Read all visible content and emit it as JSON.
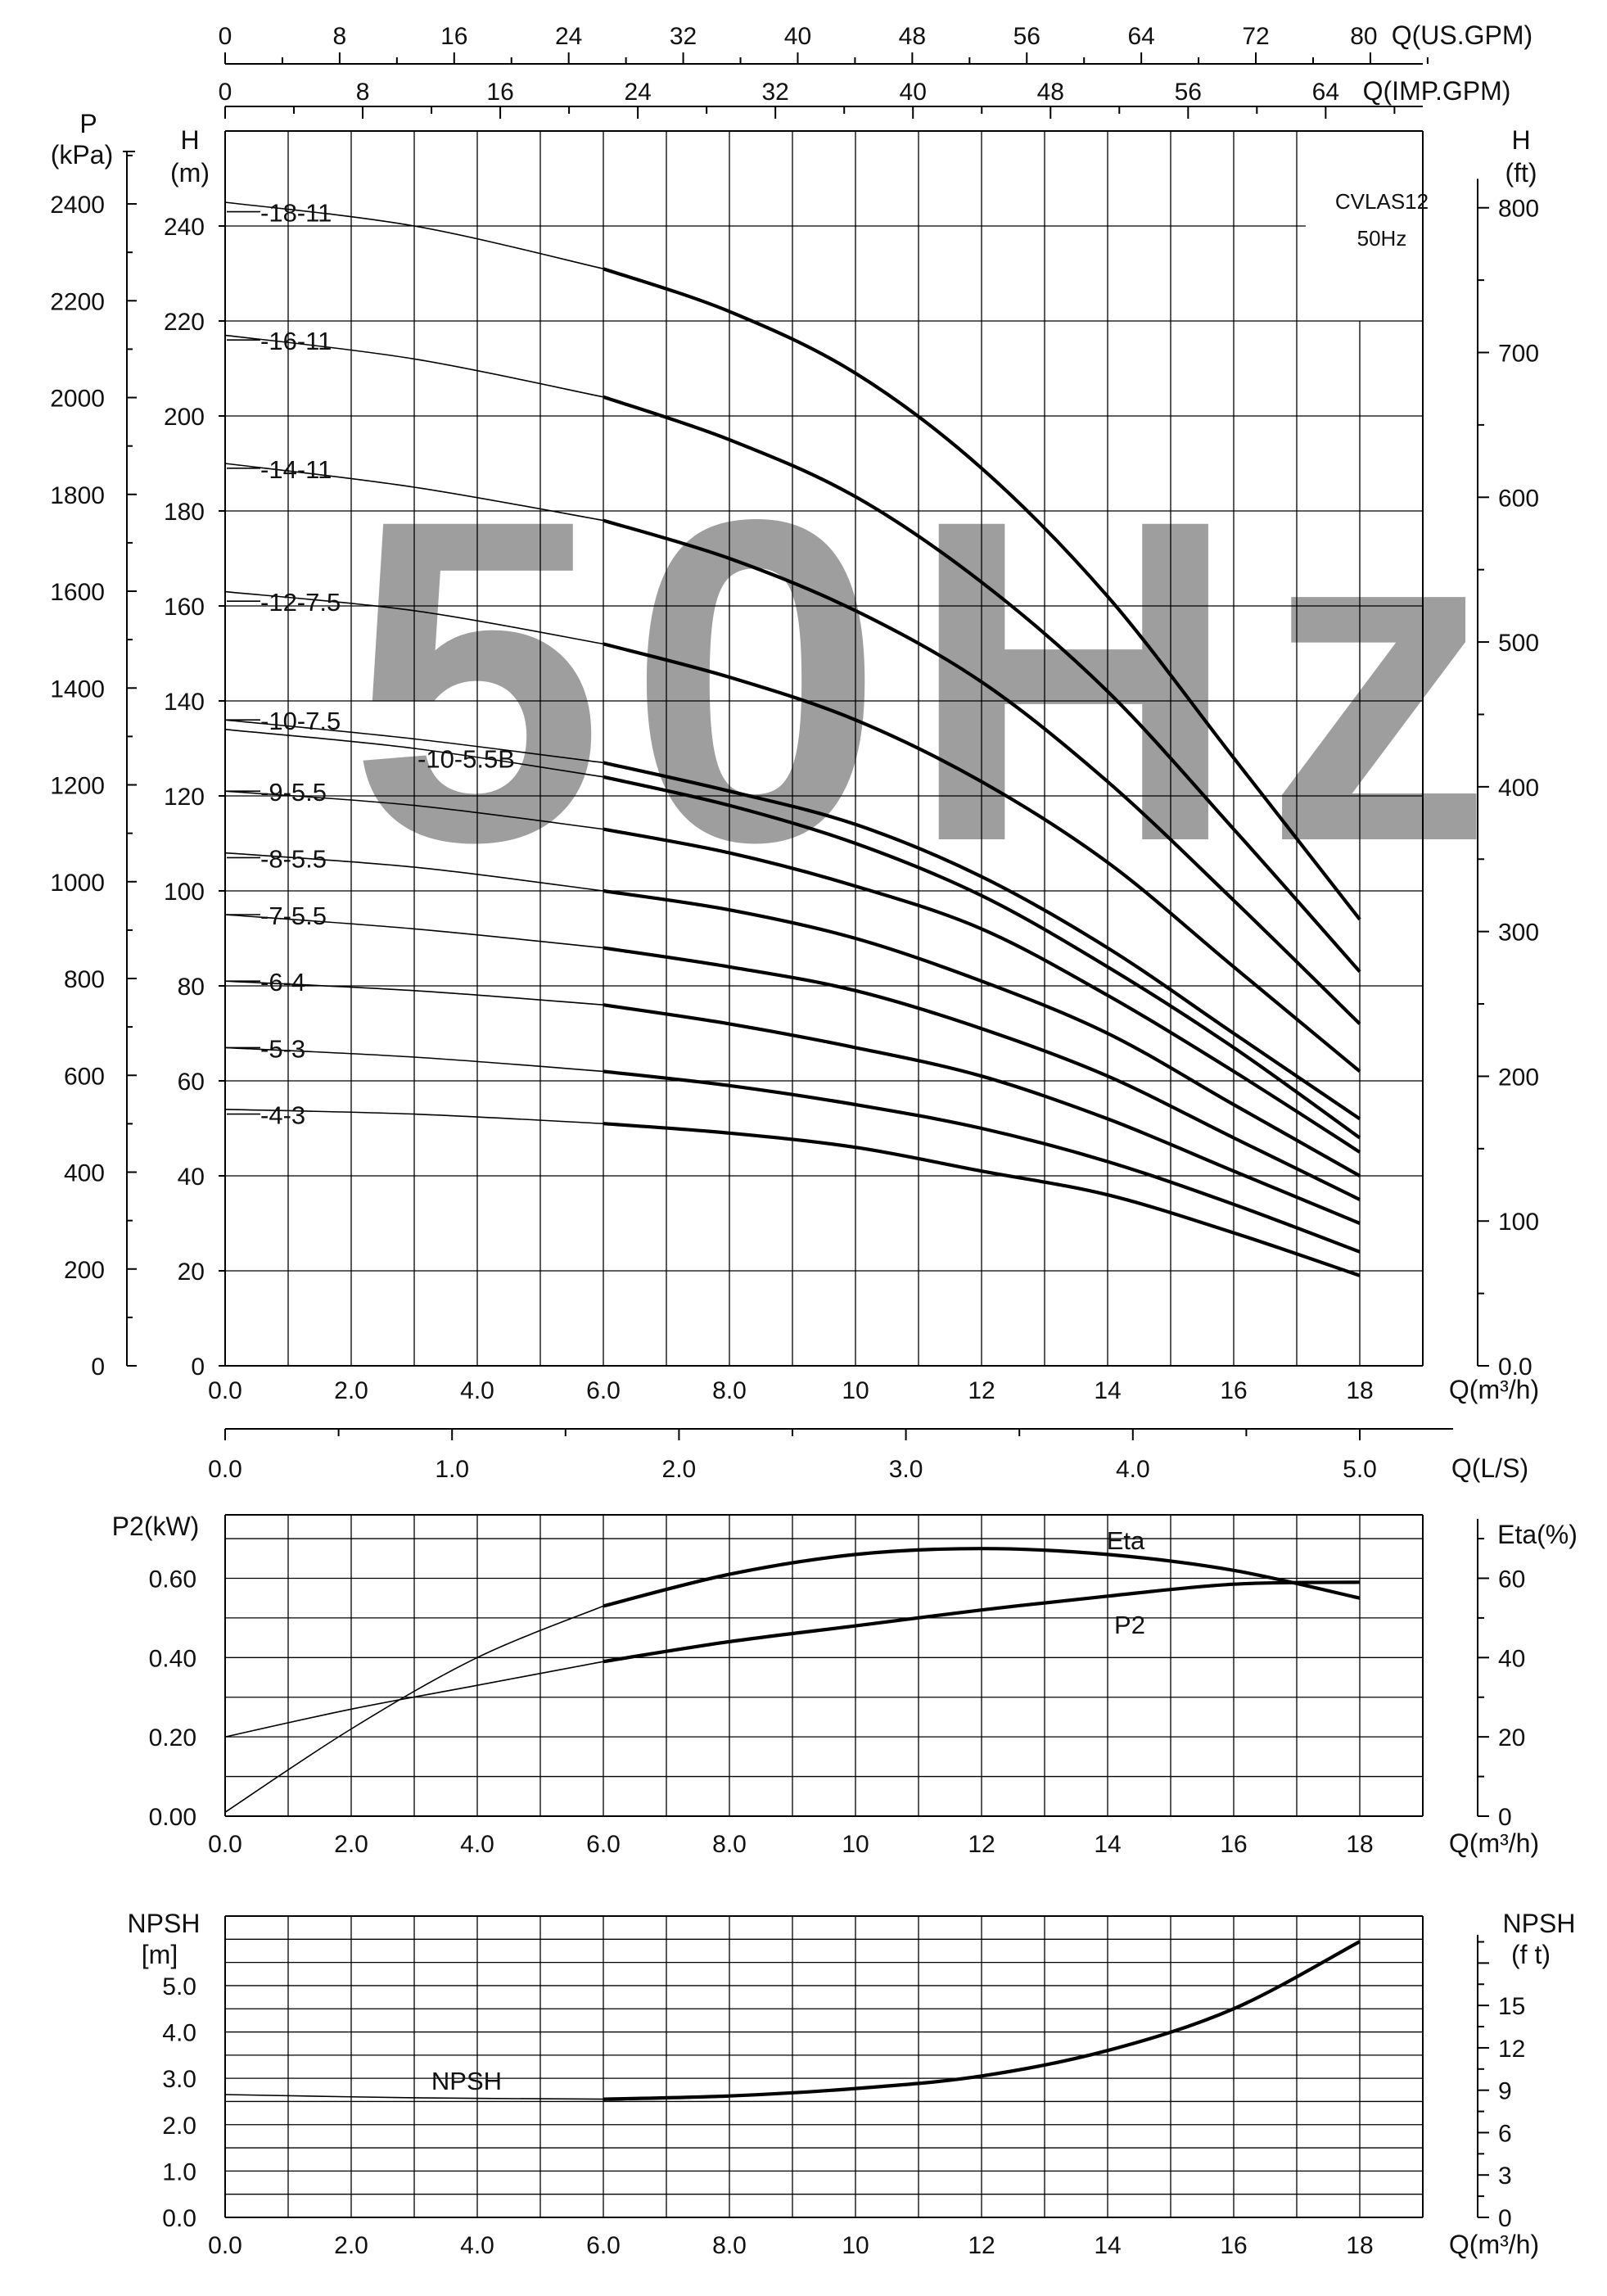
{
  "chart_data": [
    {
      "type": "line",
      "id": "head",
      "model": "CVLAS12",
      "frequency": "50Hz",
      "watermark": "50Hz",
      "x_axis": {
        "label": "Q(m³/h)",
        "range": [
          0,
          19
        ],
        "ticks": [
          0,
          2,
          4,
          6,
          8,
          10,
          12,
          14,
          16,
          18
        ],
        "tick_labels": [
          "0.0",
          "2.0",
          "4.0",
          "6.0",
          "8.0",
          "10",
          "12",
          "14",
          "16",
          "18"
        ]
      },
      "x_axis_ls": {
        "label": "Q(L/S)",
        "ticks": [
          0,
          1,
          2,
          3,
          4,
          5
        ],
        "tick_labels": [
          "0.0",
          "1.0",
          "2.0",
          "3.0",
          "4.0",
          "5.0"
        ]
      },
      "x_axis_us_gpm": {
        "label": "Q(US.GPM)",
        "ticks": [
          0,
          8,
          16,
          24,
          32,
          40,
          48,
          56,
          64,
          72,
          80
        ],
        "tick_labels": [
          "0",
          "8",
          "16",
          "24",
          "32",
          "40",
          "48",
          "56",
          "64",
          "72",
          "80"
        ]
      },
      "x_axis_imp_gpm": {
        "label": "Q(IMP.GPM)",
        "ticks": [
          0,
          8,
          16,
          24,
          32,
          40,
          48,
          56,
          64
        ],
        "tick_labels": [
          "0",
          "8",
          "16",
          "24",
          "32",
          "40",
          "48",
          "56",
          "64"
        ]
      },
      "y_axis_m": {
        "label": "H (m)",
        "range": [
          0,
          260
        ],
        "ticks": [
          0,
          20,
          40,
          60,
          80,
          100,
          120,
          140,
          160,
          180,
          200,
          220,
          240
        ],
        "tick_labels": [
          "0",
          "20",
          "40",
          "60",
          "80",
          "100",
          "120",
          "140",
          "160",
          "180",
          "200",
          "220",
          "240"
        ]
      },
      "y_axis_kpa": {
        "label": "P (kPa)",
        "ticks": [
          0,
          200,
          400,
          600,
          800,
          1000,
          1200,
          1400,
          1600,
          1800,
          2000,
          2200,
          2400
        ],
        "tick_labels": [
          "0",
          "200",
          "400",
          "600",
          "800",
          "1000",
          "1200",
          "1400",
          "1600",
          "1800",
          "2000",
          "2200",
          "2400"
        ]
      },
      "y_axis_ft": {
        "label": "H (ft)",
        "ticks": [
          0,
          100,
          200,
          300,
          400,
          500,
          600,
          700,
          800
        ],
        "tick_labels": [
          "0.0",
          "100",
          "200",
          "300",
          "400",
          "500",
          "600",
          "700",
          "800"
        ]
      },
      "grid": true,
      "series": [
        {
          "name": "-18-11",
          "label_head": 243,
          "points": [
            [
              0,
              245
            ],
            [
              3,
              240
            ],
            [
              6,
              231
            ],
            [
              8,
              222
            ],
            [
              10,
              209
            ],
            [
              12,
              189
            ],
            [
              14,
              162
            ],
            [
              16,
              128
            ],
            [
              18,
              94
            ]
          ]
        },
        {
          "name": "-16-11",
          "label_head": 216,
          "points": [
            [
              0,
              217
            ],
            [
              3,
              212
            ],
            [
              6,
              204
            ],
            [
              8,
              195
            ],
            [
              10,
              183
            ],
            [
              12,
              165
            ],
            [
              14,
              142
            ],
            [
              16,
              113
            ],
            [
              18,
              83
            ]
          ]
        },
        {
          "name": "-14-11",
          "label_head": 189,
          "points": [
            [
              0,
              190
            ],
            [
              3,
              185
            ],
            [
              6,
              178
            ],
            [
              8,
              170
            ],
            [
              10,
              159
            ],
            [
              12,
              144
            ],
            [
              14,
              123
            ],
            [
              16,
              98
            ],
            [
              18,
              72
            ]
          ]
        },
        {
          "name": "-12-7.5",
          "label_head": 161,
          "points": [
            [
              0,
              163
            ],
            [
              3,
              159
            ],
            [
              6,
              152
            ],
            [
              8,
              145
            ],
            [
              10,
              136
            ],
            [
              12,
              123
            ],
            [
              14,
              106
            ],
            [
              16,
              84
            ],
            [
              18,
              62
            ]
          ]
        },
        {
          "name": "-10-7.5",
          "label_head": 136,
          "points": [
            [
              0,
              136
            ],
            [
              3,
              132
            ],
            [
              6,
              127
            ],
            [
              8,
              121
            ],
            [
              10,
              114
            ],
            [
              12,
              103
            ],
            [
              14,
              88
            ],
            [
              16,
              70
            ],
            [
              18,
              52
            ]
          ]
        },
        {
          "name": "-10-5.5B",
          "label_head": 128,
          "points": [
            [
              0,
              134
            ],
            [
              3,
              130
            ],
            [
              6,
              124
            ],
            [
              8,
              118
            ],
            [
              10,
              110
            ],
            [
              12,
              99
            ],
            [
              14,
              84
            ],
            [
              16,
              67
            ],
            [
              18,
              48
            ]
          ]
        },
        {
          "name": "-9-5.5",
          "label_head": 121,
          "points": [
            [
              0,
              121
            ],
            [
              3,
              118
            ],
            [
              6,
              113
            ],
            [
              8,
              108
            ],
            [
              10,
              101
            ],
            [
              12,
              92
            ],
            [
              14,
              78
            ],
            [
              16,
              62
            ],
            [
              18,
              45
            ]
          ]
        },
        {
          "name": "-8-5.5",
          "label_head": 107,
          "points": [
            [
              0,
              108
            ],
            [
              3,
              105
            ],
            [
              6,
              100
            ],
            [
              8,
              96
            ],
            [
              10,
              90
            ],
            [
              12,
              81
            ],
            [
              14,
              70
            ],
            [
              16,
              55
            ],
            [
              18,
              40
            ]
          ]
        },
        {
          "name": "-7-5.5",
          "label_head": 95,
          "points": [
            [
              0,
              95
            ],
            [
              3,
              92
            ],
            [
              6,
              88
            ],
            [
              8,
              84
            ],
            [
              10,
              79
            ],
            [
              12,
              71
            ],
            [
              14,
              61
            ],
            [
              16,
              48
            ],
            [
              18,
              35
            ]
          ]
        },
        {
          "name": "-6-4",
          "label_head": 81,
          "points": [
            [
              0,
              81
            ],
            [
              3,
              79
            ],
            [
              6,
              76
            ],
            [
              8,
              72
            ],
            [
              10,
              67
            ],
            [
              12,
              61
            ],
            [
              14,
              52
            ],
            [
              16,
              41
            ],
            [
              18,
              30
            ]
          ]
        },
        {
          "name": "-5-3",
          "label_head": 67,
          "points": [
            [
              0,
              67
            ],
            [
              3,
              65
            ],
            [
              6,
              62
            ],
            [
              8,
              59
            ],
            [
              10,
              55
            ],
            [
              12,
              50
            ],
            [
              14,
              43
            ],
            [
              16,
              34
            ],
            [
              18,
              24
            ]
          ]
        },
        {
          "name": "-4-3",
          "label_head": 53,
          "points": [
            [
              0,
              54
            ],
            [
              3,
              53
            ],
            [
              6,
              51
            ],
            [
              8,
              49
            ],
            [
              10,
              46
            ],
            [
              12,
              41
            ],
            [
              14,
              36
            ],
            [
              16,
              28
            ],
            [
              18,
              19
            ]
          ]
        }
      ],
      "plot_box_text": [
        "CVLAS12",
        "50Hz"
      ]
    },
    {
      "type": "line",
      "id": "power",
      "x_axis": {
        "label": "Q(m³/h)",
        "range": [
          0,
          19
        ],
        "ticks": [
          0,
          2,
          4,
          6,
          8,
          10,
          12,
          14,
          16,
          18
        ],
        "tick_labels": [
          "0.0",
          "2.0",
          "4.0",
          "6.0",
          "8.0",
          "10",
          "12",
          "14",
          "16",
          "18"
        ]
      },
      "y_axis_left": {
        "label": "P2(kW)",
        "range": [
          0,
          0.76
        ],
        "ticks": [
          0,
          0.2,
          0.4,
          0.6
        ],
        "tick_labels": [
          "0.00",
          "0.20",
          "0.40",
          "0.60"
        ]
      },
      "y_axis_right": {
        "label": "Eta(%)",
        "ticks": [
          0,
          20,
          40,
          60
        ],
        "tick_labels": [
          "0",
          "20",
          "40",
          "60"
        ]
      },
      "grid": true,
      "series": [
        {
          "name": "Eta",
          "unit": "%",
          "points": [
            [
              0,
              1
            ],
            [
              2,
              22
            ],
            [
              4,
              40
            ],
            [
              6,
              53
            ],
            [
              8,
              61
            ],
            [
              10,
              66
            ],
            [
              12,
              67.5
            ],
            [
              14,
              66
            ],
            [
              16,
              62
            ],
            [
              18,
              55
            ]
          ]
        },
        {
          "name": "P2",
          "unit": "kW",
          "points": [
            [
              0,
              0.2
            ],
            [
              2,
              0.27
            ],
            [
              4,
              0.33
            ],
            [
              6,
              0.39
            ],
            [
              8,
              0.44
            ],
            [
              10,
              0.48
            ],
            [
              12,
              0.52
            ],
            [
              14,
              0.555
            ],
            [
              16,
              0.585
            ],
            [
              18,
              0.59
            ]
          ]
        }
      ]
    },
    {
      "type": "line",
      "id": "npsh",
      "x_axis": {
        "label": "Q(m³/h)",
        "range": [
          0,
          19
        ],
        "ticks": [
          0,
          2,
          4,
          6,
          8,
          10,
          12,
          14,
          16,
          18
        ],
        "tick_labels": [
          "0.0",
          "2.0",
          "4.0",
          "6.0",
          "8.0",
          "10",
          "12",
          "14",
          "16",
          "18"
        ]
      },
      "y_axis_left": {
        "label_line1": "NPSH",
        "label_line2": "[m]",
        "range": [
          0,
          6.5
        ],
        "ticks": [
          0,
          1,
          2,
          3,
          4,
          5
        ],
        "tick_labels": [
          "0.0",
          "1.0",
          "2.0",
          "3.0",
          "4.0",
          "5.0"
        ]
      },
      "y_axis_right": {
        "label_line1": "NPSH",
        "label_line2": "(f t)",
        "ticks": [
          0,
          3,
          6,
          9,
          12,
          15
        ],
        "tick_labels": [
          "0",
          "3",
          "6",
          "9",
          "12",
          "15"
        ]
      },
      "grid": true,
      "series": [
        {
          "name": "NPSH",
          "unit": "m",
          "points": [
            [
              0,
              2.65
            ],
            [
              3,
              2.58
            ],
            [
              6,
              2.55
            ],
            [
              8,
              2.62
            ],
            [
              10,
              2.78
            ],
            [
              12,
              3.05
            ],
            [
              14,
              3.6
            ],
            [
              16,
              4.5
            ],
            [
              18,
              5.95
            ]
          ]
        }
      ]
    }
  ]
}
